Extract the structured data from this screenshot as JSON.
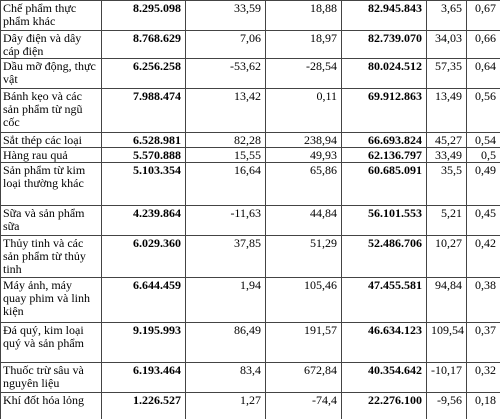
{
  "table": {
    "rows": [
      [
        "Chế phẩm thực phẩm khác",
        "8.295.098",
        "33,59",
        "18,88",
        "82.945.843",
        "3,65",
        "0,67"
      ],
      [
        "Dây điện và dây cáp điện",
        "8.768.629",
        "7,06",
        "18,97",
        "82.739.070",
        "34,03",
        "0,66"
      ],
      [
        "Dầu mỡ động, thực vật",
        "6.256.258",
        "-53,62",
        "-28,54",
        "80.024.512",
        "57,35",
        "0,64"
      ],
      [
        "Bánh kẹo và các sản phẩm từ ngũ cốc",
        "7.988.474",
        "13,42",
        "0,11",
        "69.912.863",
        "13,49",
        "0,56"
      ],
      [
        "Sắt thép các loại",
        "6.528.981",
        "82,28",
        "238,94",
        "66.693.824",
        "45,27",
        "0,54"
      ],
      [
        "Hàng rau quả",
        "5.570.888",
        "15,55",
        "49,93",
        "62.136.797",
        "33,49",
        "0,5"
      ],
      [
        "Sản phẩm từ kim loại thường khác",
        "5.103.354",
        "16,64",
        "65,86",
        "60.685.091",
        "35,5",
        "0,49"
      ],
      [
        "Sữa và sản phẩm sữa",
        "4.239.864",
        "-11,63",
        "44,84",
        "56.101.553",
        "5,21",
        "0,45"
      ],
      [
        "Thủy tinh và các sản phẩm từ thủy tinh",
        "6.029.360",
        "37,85",
        "51,29",
        "52.486.706",
        "10,27",
        "0,42"
      ],
      [
        "Máy ảnh, máy quay phim và linh kiện",
        "6.644.459",
        "1,94",
        "105,46",
        "47.455.581",
        "94,84",
        "0,38"
      ],
      [
        "Đá quý, kim loại quý và sản phẩm",
        "9.195.993",
        "86,49",
        "191,57",
        "46.634.123",
        "109,54",
        "0,37"
      ],
      [
        "Thuốc trừ sâu và nguyên liệu",
        "6.193.464",
        "83,4",
        "672,84",
        "40.354.642",
        "-10,17",
        "0,32"
      ],
      [
        "Khí đốt hóa lỏng",
        "1.226.527",
        "1,27",
        "-74,4",
        "22.276.100",
        "-9,56",
        "0,18"
      ]
    ]
  }
}
